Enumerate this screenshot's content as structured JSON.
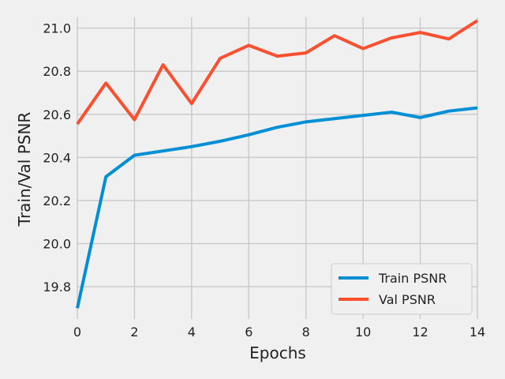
{
  "chart_data": {
    "type": "line",
    "xlabel": "Epochs",
    "ylabel": "Train/Val PSNR",
    "xlim": [
      0,
      14
    ],
    "ylim": [
      19.65,
      21.05
    ],
    "xticks": [
      0,
      2,
      4,
      6,
      8,
      10,
      12,
      14
    ],
    "xtick_labels": [
      "0",
      "2",
      "4",
      "6",
      "8",
      "10",
      "12",
      "14"
    ],
    "yticks": [
      19.8,
      20.0,
      20.2,
      20.4,
      20.6,
      20.8,
      21.0
    ],
    "ytick_labels": [
      "19.8",
      "20.0",
      "20.2",
      "20.4",
      "20.6",
      "20.8",
      "21.0"
    ],
    "grid": true,
    "legend_position": "lower-right",
    "x": [
      0,
      1,
      2,
      3,
      4,
      5,
      6,
      7,
      8,
      9,
      10,
      11,
      12,
      13,
      14
    ],
    "series": [
      {
        "name": "Train PSNR",
        "color": "#008fd5",
        "values": [
          19.7,
          20.31,
          20.41,
          20.43,
          20.45,
          20.475,
          20.505,
          20.54,
          20.565,
          20.58,
          20.595,
          20.61,
          20.585,
          20.615,
          20.63
        ]
      },
      {
        "name": "Val PSNR",
        "color": "#fc4f30",
        "values": [
          20.555,
          20.745,
          20.575,
          20.83,
          20.65,
          20.86,
          20.92,
          20.87,
          20.885,
          20.965,
          20.905,
          20.955,
          20.98,
          20.95,
          21.035
        ]
      }
    ]
  }
}
